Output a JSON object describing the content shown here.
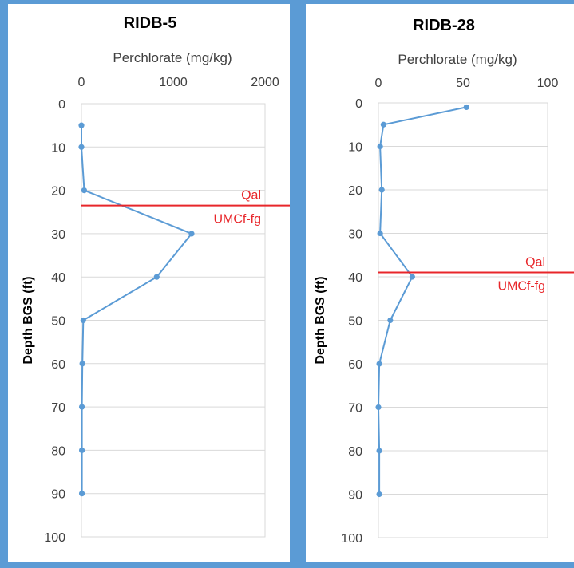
{
  "colors": {
    "background": "#5b9bd5",
    "panel": "#ffffff",
    "series": "#5b9bd5",
    "boundary": "#e8262a",
    "grid": "#d9d9d9"
  },
  "chart_data": [
    {
      "type": "line",
      "title": "RIDB-5",
      "xlabel": "Perchlorate (mg/kg)",
      "ylabel": "Depth BGS (ft)",
      "xlim": [
        0,
        2000
      ],
      "xticks": [
        0,
        1000,
        2000
      ],
      "ylim": [
        0,
        100
      ],
      "yticks": [
        0,
        10,
        20,
        30,
        40,
        50,
        60,
        70,
        80,
        90,
        100
      ],
      "y_inverted": true,
      "x_axis_position": "top",
      "grid": "horizontal",
      "points": [
        {
          "x": 0,
          "y": 5
        },
        {
          "x": 0,
          "y": 10
        },
        {
          "x": 30,
          "y": 20
        },
        {
          "x": 1200,
          "y": 30
        },
        {
          "x": 820,
          "y": 40
        },
        {
          "x": 20,
          "y": 50
        },
        {
          "x": 10,
          "y": 60
        },
        {
          "x": 5,
          "y": 70
        },
        {
          "x": 5,
          "y": 80
        },
        {
          "x": 5,
          "y": 90
        }
      ],
      "boundary": {
        "depth": 23.5,
        "label_above": "Qal",
        "label_below": "UMCf-fg"
      }
    },
    {
      "type": "line",
      "title": "RIDB-28",
      "xlabel": "Perchlorate (mg/kg)",
      "ylabel": "Depth BGS (ft)",
      "xlim": [
        0,
        100
      ],
      "xticks": [
        0,
        50,
        100
      ],
      "ylim": [
        0,
        100
      ],
      "yticks": [
        0,
        10,
        20,
        30,
        40,
        50,
        60,
        70,
        80,
        90,
        100
      ],
      "y_inverted": true,
      "x_axis_position": "top",
      "grid": "horizontal",
      "points": [
        {
          "x": 52,
          "y": 1
        },
        {
          "x": 3,
          "y": 5
        },
        {
          "x": 1,
          "y": 10
        },
        {
          "x": 2,
          "y": 20
        },
        {
          "x": 1,
          "y": 30
        },
        {
          "x": 20,
          "y": 40
        },
        {
          "x": 7,
          "y": 50
        },
        {
          "x": 0.5,
          "y": 60
        },
        {
          "x": 0,
          "y": 70
        },
        {
          "x": 0.5,
          "y": 80
        },
        {
          "x": 0.5,
          "y": 90
        }
      ],
      "boundary": {
        "depth": 39,
        "label_above": "Qal",
        "label_below": "UMCf-fg"
      }
    }
  ]
}
